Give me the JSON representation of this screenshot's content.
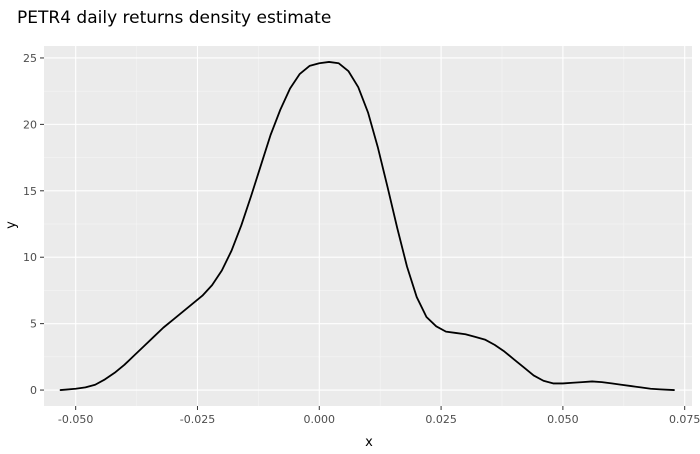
{
  "chart_data": {
    "type": "line",
    "title": "PETR4 daily returns density estimate",
    "xlabel": "x",
    "ylabel": "y",
    "xlim": [
      -0.0565,
      0.0765
    ],
    "ylim": [
      -1.2,
      25.9
    ],
    "xticks": [
      -0.05,
      -0.025,
      0.0,
      0.025,
      0.05,
      0.075
    ],
    "xtick_labels": [
      "-0.050",
      "-0.025",
      "0.000",
      "0.025",
      "0.050",
      "0.075"
    ],
    "yticks": [
      0,
      5,
      10,
      15,
      20,
      25
    ],
    "ytick_labels": [
      "0",
      "5",
      "10",
      "15",
      "20",
      "25"
    ],
    "grid": true,
    "legend": "none",
    "colors": {
      "panel_background": "#ebebeb",
      "grid_major": "#ffffff",
      "grid_minor": "#f5f5f5",
      "line": "#000000"
    },
    "series": [
      {
        "x": [
          -0.0531,
          -0.05,
          -0.048,
          -0.046,
          -0.044,
          -0.042,
          -0.04,
          -0.038,
          -0.036,
          -0.034,
          -0.032,
          -0.03,
          -0.028,
          -0.026,
          -0.024,
          -0.022,
          -0.02,
          -0.018,
          -0.016,
          -0.014,
          -0.012,
          -0.01,
          -0.008,
          -0.006,
          -0.004,
          -0.002,
          0.0,
          0.002,
          0.004,
          0.006,
          0.008,
          0.01,
          0.012,
          0.014,
          0.016,
          0.018,
          0.02,
          0.022,
          0.024,
          0.026,
          0.028,
          0.03,
          0.032,
          0.034,
          0.036,
          0.038,
          0.04,
          0.042,
          0.044,
          0.046,
          0.048,
          0.05,
          0.052,
          0.054,
          0.056,
          0.058,
          0.06,
          0.062,
          0.064,
          0.066,
          0.068,
          0.07,
          0.0728
        ],
        "y": [
          0.0,
          0.1,
          0.2,
          0.4,
          0.8,
          1.3,
          1.9,
          2.6,
          3.3,
          4.0,
          4.7,
          5.3,
          5.9,
          6.5,
          7.1,
          7.9,
          9.0,
          10.5,
          12.4,
          14.6,
          16.9,
          19.2,
          21.1,
          22.7,
          23.8,
          24.4,
          24.6,
          24.7,
          24.6,
          24.0,
          22.8,
          20.9,
          18.3,
          15.3,
          12.2,
          9.3,
          7.0,
          5.5,
          4.8,
          4.4,
          4.3,
          4.2,
          4.0,
          3.8,
          3.4,
          2.9,
          2.3,
          1.7,
          1.1,
          0.7,
          0.5,
          0.5,
          0.55,
          0.6,
          0.65,
          0.6,
          0.5,
          0.4,
          0.3,
          0.2,
          0.1,
          0.05,
          0.0
        ]
      }
    ]
  }
}
